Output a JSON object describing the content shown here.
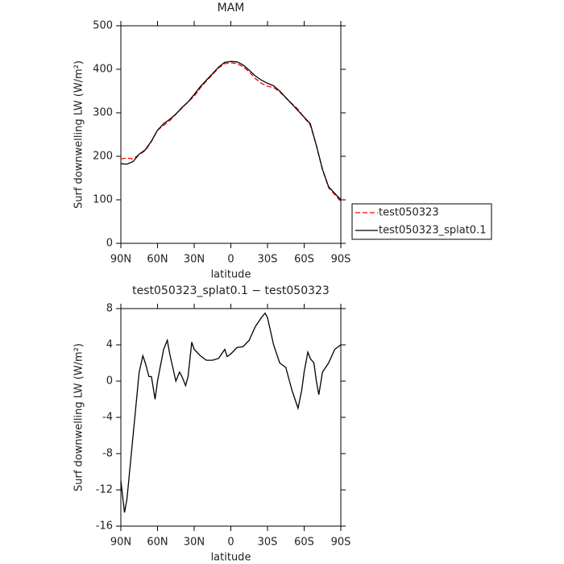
{
  "chart_data": [
    {
      "type": "line",
      "title": "MAM",
      "xlabel": "latitude",
      "ylabel": "Surf downwelling LW (W/m²)",
      "x": [
        90,
        85,
        80,
        75,
        70,
        65,
        60,
        55,
        50,
        45,
        40,
        35,
        30,
        25,
        20,
        15,
        10,
        5,
        0,
        -5,
        -10,
        -15,
        -20,
        -25,
        -30,
        -35,
        -40,
        -45,
        -50,
        -55,
        -60,
        -65,
        -70,
        -75,
        -80,
        -85,
        -90
      ],
      "series": [
        {
          "name": "test050323",
          "color": "#ff0000",
          "linestyle": "dashed",
          "values": [
            194,
            196,
            194,
            204,
            213,
            234,
            260,
            271,
            282,
            297,
            311,
            325,
            338,
            357,
            373,
            388,
            403,
            413,
            415,
            413,
            406,
            394,
            379,
            368,
            361,
            358,
            348,
            334,
            321,
            308,
            289,
            272,
            225,
            169,
            128,
            112,
            96
          ]
        },
        {
          "name": "test050323_splat0.1",
          "color": "#000000",
          "linestyle": "solid",
          "values": [
            183,
            182,
            188,
            205,
            215,
            235,
            260,
            275,
            285,
            297,
            312,
            325,
            342,
            360,
            375,
            390,
            405,
            416,
            418,
            417,
            410,
            398,
            385,
            375,
            368,
            362,
            350,
            335,
            320,
            305,
            290,
            275,
            225,
            170,
            130,
            115,
            100
          ]
        }
      ],
      "xlim": [
        90,
        -90
      ],
      "xticks": [
        {
          "value": 90,
          "label": "90N"
        },
        {
          "value": 60,
          "label": "60N"
        },
        {
          "value": 30,
          "label": "30N"
        },
        0,
        {
          "value": -30,
          "label": "30S"
        },
        {
          "value": -60,
          "label": "60S"
        },
        {
          "value": -90,
          "label": "90S"
        }
      ],
      "ylim": [
        0,
        500
      ],
      "yticks": [
        0,
        100,
        200,
        300,
        400,
        500
      ],
      "legend": "right"
    },
    {
      "type": "line",
      "title": "test050323_splat0.1 − test050323",
      "xlabel": "latitude",
      "ylabel": "Surf downwelling LW (W/m²)",
      "x": [
        90,
        87,
        85,
        80,
        75,
        72,
        70,
        67,
        65,
        62,
        60,
        55,
        52,
        50,
        45,
        42,
        40,
        37,
        35,
        32,
        30,
        25,
        20,
        15,
        10,
        5,
        3,
        0,
        -5,
        -10,
        -15,
        -20,
        -25,
        -28,
        -30,
        -35,
        -40,
        -45,
        -50,
        -55,
        -58,
        -60,
        -63,
        -65,
        -68,
        -70,
        -72,
        -75,
        -80,
        -85,
        -90
      ],
      "series": [
        {
          "color": "#000000",
          "linestyle": "solid",
          "values": [
            -11,
            -14.5,
            -13,
            -6,
            1,
            2.8,
            2,
            0.5,
            0.5,
            -2,
            0,
            3.5,
            4.5,
            3,
            0,
            1,
            0.5,
            -0.5,
            0.5,
            4.3,
            3.5,
            2.8,
            2.3,
            2.3,
            2.5,
            3.5,
            2.7,
            3,
            3.7,
            3.8,
            4.5,
            6,
            7,
            7.5,
            7,
            4,
            2,
            1.5,
            -1,
            -3,
            -1,
            1,
            3.2,
            2.5,
            2,
            0,
            -1.5,
            1,
            2,
            3.5,
            4
          ]
        }
      ],
      "xlim": [
        90,
        -90
      ],
      "xticks": [
        {
          "value": 90,
          "label": "90N"
        },
        {
          "value": 60,
          "label": "60N"
        },
        {
          "value": 30,
          "label": "30N"
        },
        0,
        {
          "value": -30,
          "label": "30S"
        },
        {
          "value": -60,
          "label": "60S"
        },
        {
          "value": -90,
          "label": "90S"
        }
      ],
      "ylim": [
        -16,
        8
      ],
      "yticks": [
        -16,
        -12,
        -8,
        -4,
        0,
        4,
        8
      ]
    }
  ]
}
